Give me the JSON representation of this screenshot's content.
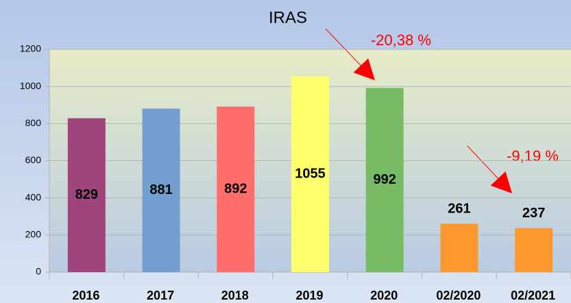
{
  "chart_data": {
    "type": "bar",
    "title": "IRAS",
    "categories": [
      "2016",
      "2017",
      "2018",
      "2019",
      "2020",
      "02/2020",
      "02/2021"
    ],
    "values": [
      829,
      881,
      892,
      1055,
      992,
      261,
      237
    ],
    "colors": [
      "#a0457b",
      "#729fcf",
      "#ff6d6d",
      "#ffff6d",
      "#77bc65",
      "#ff972f",
      "#ff972f"
    ],
    "ylim": [
      0,
      1200
    ],
    "yticks": [
      0,
      200,
      400,
      600,
      800,
      1000,
      1200
    ],
    "grid": true,
    "annotations": [
      "-20,38 %",
      "-9,19 %"
    ]
  }
}
